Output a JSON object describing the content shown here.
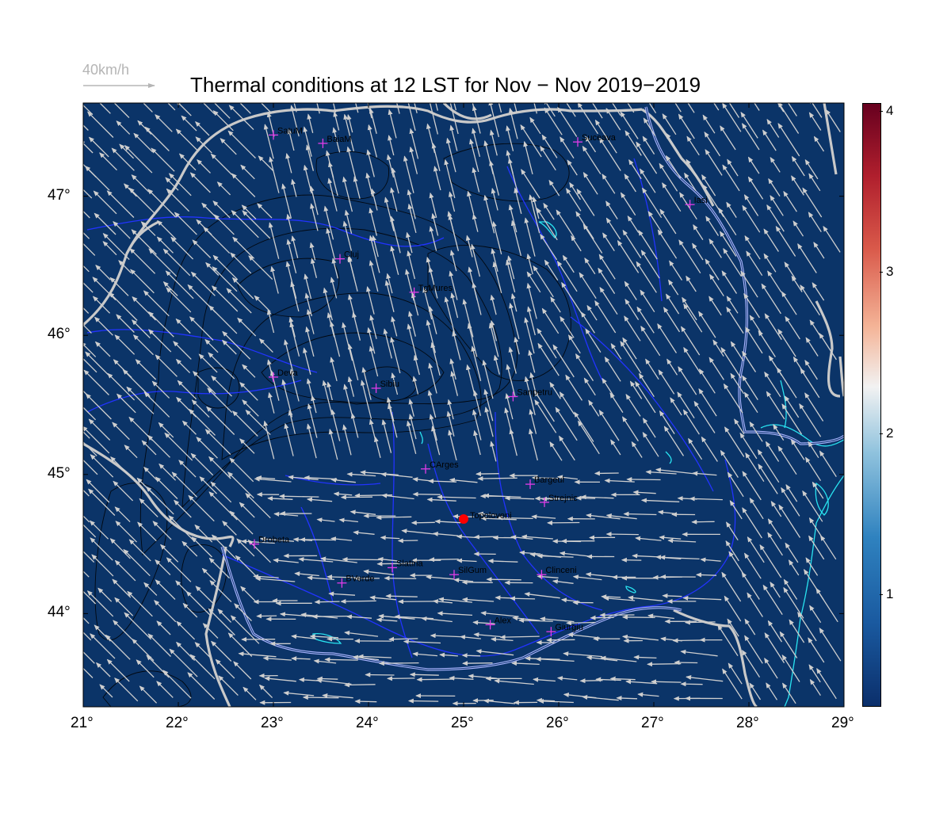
{
  "title": "Thermal conditions at 12 LST for Nov − Nov  2019−2019",
  "wind_scale": {
    "label": "40km/h"
  },
  "map": {
    "lon_range": [
      21,
      29
    ],
    "lat_range": [
      43.33,
      47.67
    ],
    "background_color": "#0b3468",
    "x_ticks": [
      "21°",
      "22°",
      "23°",
      "24°",
      "25°",
      "26°",
      "27°",
      "28°",
      "29°"
    ],
    "y_ticks": [
      "44°",
      "45°",
      "46°",
      "47°"
    ],
    "selected_point": {
      "name": "Topoloveni",
      "lon": 25.0,
      "lat": 44.68,
      "color": "#ff0000"
    },
    "stations": [
      {
        "name": "SatuM",
        "lon": 23.0,
        "lat": 47.44
      },
      {
        "name": "BaiaM",
        "lon": 23.52,
        "lat": 47.38
      },
      {
        "name": "Suceava",
        "lon": 26.2,
        "lat": 47.39
      },
      {
        "name": "Iasi",
        "lon": 27.38,
        "lat": 46.94
      },
      {
        "name": "Cluj",
        "lon": 23.7,
        "lat": 46.55
      },
      {
        "name": "TgMures",
        "lon": 24.48,
        "lat": 46.31
      },
      {
        "name": "Deva",
        "lon": 23.0,
        "lat": 45.7
      },
      {
        "name": "Sibiu",
        "lon": 24.08,
        "lat": 45.62
      },
      {
        "name": "Sanpetru",
        "lon": 25.52,
        "lat": 45.56
      },
      {
        "name": "CArges",
        "lon": 24.6,
        "lat": 45.04
      },
      {
        "name": "Bargeul",
        "lon": 25.7,
        "lat": 44.93
      },
      {
        "name": "Strejnic",
        "lon": 25.85,
        "lat": 44.8
      },
      {
        "name": "Drobeta",
        "lon": 22.8,
        "lat": 44.5
      },
      {
        "name": "Slatina",
        "lon": 24.25,
        "lat": 44.33
      },
      {
        "name": "BVerde",
        "lon": 23.72,
        "lat": 44.22
      },
      {
        "name": "SilGum",
        "lon": 24.9,
        "lat": 44.28
      },
      {
        "name": "Clinceni",
        "lon": 25.82,
        "lat": 44.28
      },
      {
        "name": "Alex",
        "lon": 25.28,
        "lat": 43.92
      },
      {
        "name": "Giurgiu",
        "lon": 25.92,
        "lat": 43.87
      }
    ]
  },
  "colorbar": {
    "ticks": [
      "1",
      "2",
      "3",
      "4"
    ],
    "range": [
      0.3,
      4.05
    ],
    "colors": [
      "#0b2f6b",
      "#2f82bf",
      "#f2f2f2",
      "#d9594a",
      "#67001f"
    ]
  }
}
